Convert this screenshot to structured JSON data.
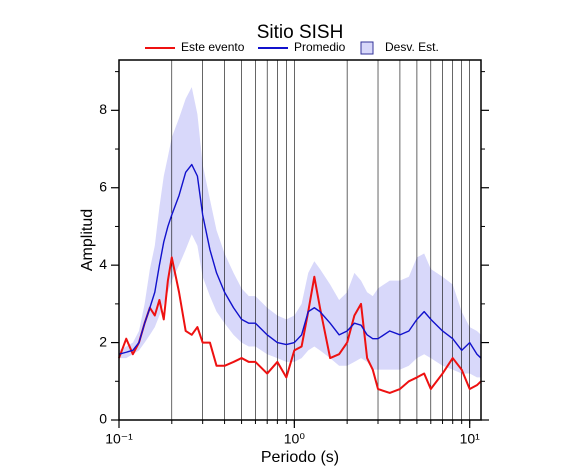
{
  "chart_data": {
    "type": "line",
    "title": "Sitio SISH",
    "xlabel": "Periodo (s)",
    "ylabel": "Amplitud",
    "xscale": "log",
    "x": [
      0.1,
      0.11,
      0.12,
      0.13,
      0.14,
      0.15,
      0.16,
      0.17,
      0.18,
      0.19,
      0.2,
      0.22,
      0.24,
      0.26,
      0.28,
      0.3,
      0.33,
      0.36,
      0.4,
      0.45,
      0.5,
      0.55,
      0.6,
      0.7,
      0.8,
      0.9,
      1.0,
      1.1,
      1.2,
      1.3,
      1.4,
      1.6,
      1.8,
      2.0,
      2.2,
      2.4,
      2.6,
      2.8,
      3.0,
      3.5,
      4,
      4.5,
      5,
      5.5,
      6,
      7,
      8,
      9,
      10,
      11,
      11.6
    ],
    "band": {
      "name": "Desv. Est.",
      "color": "#d8d8fa",
      "edge": "#333399",
      "lower": [
        1.6,
        1.6,
        1.7,
        1.8,
        2.0,
        2.2,
        2.4,
        2.7,
        3.0,
        3.3,
        3.6,
        4.0,
        4.4,
        4.8,
        4.5,
        3.7,
        3.2,
        2.8,
        2.5,
        2.2,
        2.0,
        1.9,
        1.9,
        1.7,
        1.6,
        1.5,
        1.5,
        1.6,
        1.8,
        1.9,
        1.8,
        1.6,
        1.4,
        1.4,
        1.5,
        1.6,
        1.5,
        1.3,
        1.3,
        1.3,
        1.3,
        1.4,
        1.6,
        1.7,
        1.6,
        1.4,
        1.3,
        1.2,
        1.2,
        1.1,
        1.1
      ],
      "upper": [
        1.8,
        1.9,
        2.0,
        2.3,
        3.0,
        3.9,
        4.5,
        5.5,
        6.3,
        6.8,
        7.3,
        7.8,
        8.3,
        8.6,
        7.9,
        6.6,
        5.7,
        4.9,
        4.3,
        3.8,
        3.4,
        3.2,
        3.2,
        2.9,
        2.7,
        2.6,
        2.7,
        3.0,
        3.8,
        4.1,
        3.9,
        3.5,
        3.1,
        3.3,
        3.8,
        3.6,
        3.3,
        3.2,
        3.4,
        3.6,
        3.6,
        3.7,
        4.2,
        4.3,
        3.9,
        3.7,
        3.5,
        2.8,
        2.4,
        2.3,
        2.2
      ]
    },
    "series": [
      {
        "name": "Este evento",
        "color": "#ee1111",
        "values": [
          1.6,
          2.1,
          1.7,
          2.0,
          2.5,
          2.9,
          2.7,
          3.1,
          2.6,
          3.6,
          4.2,
          3.3,
          2.3,
          2.2,
          2.4,
          2.0,
          2.0,
          1.4,
          1.4,
          1.5,
          1.6,
          1.5,
          1.5,
          1.2,
          1.5,
          1.1,
          1.8,
          1.9,
          2.8,
          3.7,
          2.9,
          1.6,
          1.7,
          2.0,
          2.7,
          3.0,
          1.6,
          1.3,
          0.8,
          0.7,
          0.8,
          1.0,
          1.1,
          1.2,
          0.8,
          1.2,
          1.6,
          1.3,
          0.8,
          0.9,
          1.0
        ]
      },
      {
        "name": "Promedio",
        "color": "#1111cc",
        "values": [
          1.7,
          1.75,
          1.8,
          2.0,
          2.5,
          2.9,
          3.3,
          4.0,
          4.6,
          5.0,
          5.3,
          5.8,
          6.4,
          6.6,
          6.3,
          5.3,
          4.4,
          3.8,
          3.3,
          2.9,
          2.6,
          2.5,
          2.5,
          2.2,
          2.0,
          1.95,
          2.0,
          2.2,
          2.8,
          2.9,
          2.8,
          2.5,
          2.2,
          2.3,
          2.5,
          2.45,
          2.2,
          2.1,
          2.1,
          2.3,
          2.2,
          2.3,
          2.6,
          2.8,
          2.6,
          2.3,
          2.1,
          1.8,
          2.0,
          1.7,
          1.6
        ]
      }
    ],
    "xlim": [
      0.1,
      11.6
    ],
    "xticks": [
      {
        "value": 0.1,
        "label": "10⁻¹"
      },
      {
        "value": 1,
        "label": "10⁰"
      },
      {
        "value": 10,
        "label": "10¹"
      }
    ],
    "xgrid": [
      0.2,
      0.3,
      0.4,
      0.5,
      0.6,
      0.7,
      0.8,
      0.9,
      1,
      2,
      3,
      4,
      5,
      6,
      7,
      8,
      9,
      10
    ],
    "ylim": [
      0,
      9.3
    ],
    "yticks": [
      0,
      2,
      4,
      6,
      8
    ],
    "yminor": [
      1,
      3,
      5,
      7,
      9
    ],
    "legend": "top"
  }
}
